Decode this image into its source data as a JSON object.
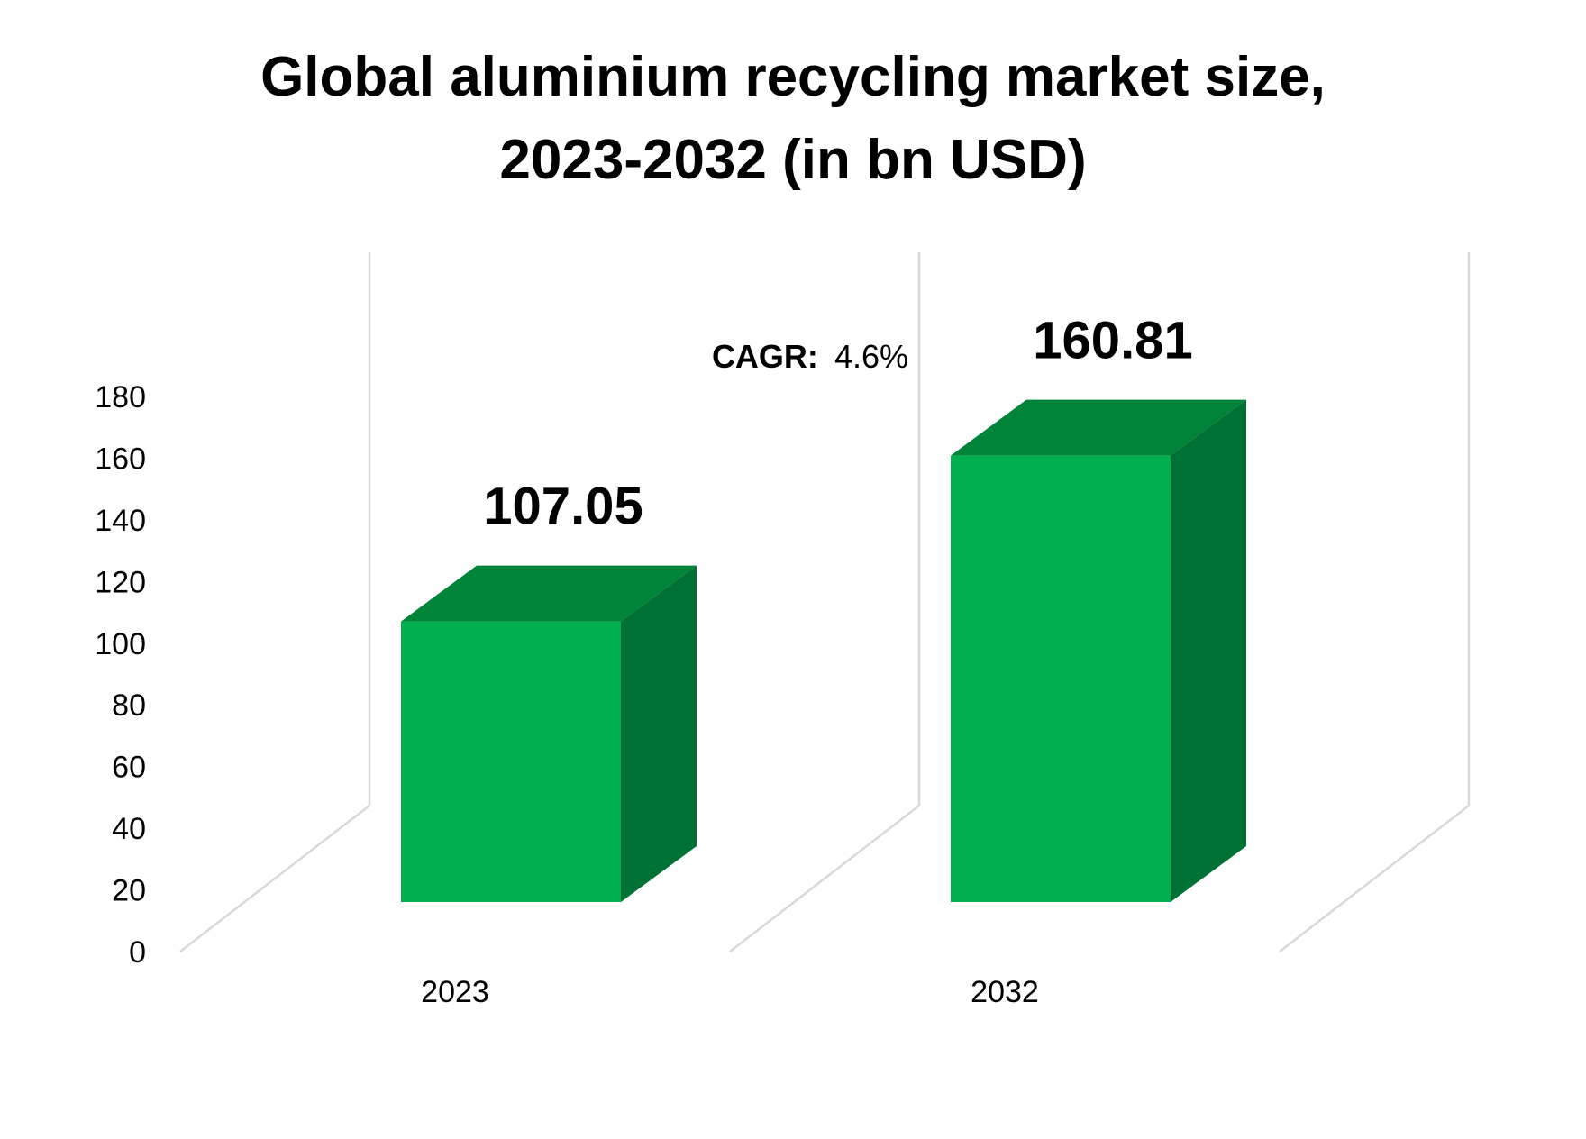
{
  "chart_data": {
    "type": "bar",
    "title_lines": [
      "Global aluminium recycling market size,",
      "2023-2032 (in bn USD)"
    ],
    "categories": [
      "2023",
      "2032"
    ],
    "values": [
      107.05,
      160.81
    ],
    "data_labels": [
      "107.05",
      "160.81"
    ],
    "ylim": [
      0,
      180
    ],
    "y_ticks": [
      "0",
      "20",
      "40",
      "60",
      "80",
      "100",
      "120",
      "140",
      "160",
      "180"
    ],
    "xlabel": "",
    "ylabel": "",
    "grid": false,
    "three_d": true,
    "annotation": {
      "label": "CAGR:",
      "value": "4.6%"
    },
    "colors": {
      "front": "#00B050",
      "top": "#00843A",
      "side": "#007134",
      "axis": "#D9D9D9"
    }
  }
}
